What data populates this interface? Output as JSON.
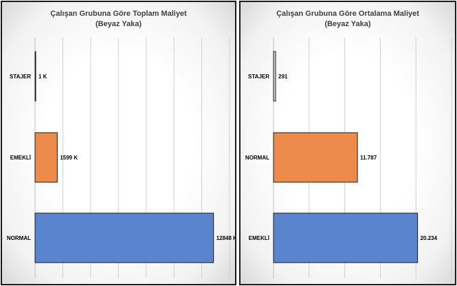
{
  "charts": [
    {
      "type": "bar",
      "orientation": "horizontal",
      "title": "Çalışan Grubuna Göre Toplam Maliyet",
      "subtitle": "(Beyaz Yaka)",
      "categories": [
        "STAJER",
        "EMEKLİ",
        "NORMAL"
      ],
      "values": [
        1,
        1599,
        12848
      ],
      "value_labels": [
        "1 K",
        "1599 K",
        "12848 K"
      ],
      "colors": [
        "#d9d9d9",
        "#ed8b4d",
        "#5b84cf"
      ],
      "xlim": [
        0,
        14000
      ],
      "grid_step": 2000,
      "grid": true,
      "legend": "none"
    },
    {
      "type": "bar",
      "orientation": "horizontal",
      "title": "Çalışan Grubuna Göre Ortalama Maliyet",
      "subtitle": "(Beyaz Yaka)",
      "categories": [
        "STAJER",
        "NORMAL",
        "EMEKLİ"
      ],
      "values": [
        291,
        11787,
        20234
      ],
      "value_labels": [
        "291",
        "11.787",
        "20.234"
      ],
      "colors": [
        "#d9d9d9",
        "#ed8b4d",
        "#5b84cf"
      ],
      "xlim": [
        0,
        25000
      ],
      "grid_step": 5000,
      "grid": true,
      "legend": "none"
    }
  ]
}
